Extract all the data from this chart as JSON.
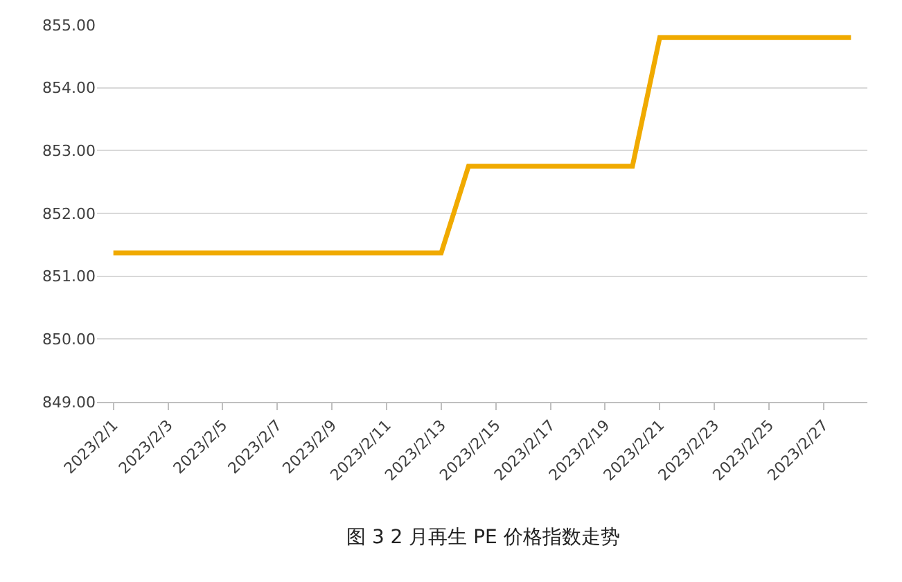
{
  "chart_data": {
    "type": "line",
    "title": "图 3 2 月再生 PE 价格指数走势",
    "categories": [
      "2023/2/1",
      null,
      "2023/2/3",
      null,
      "2023/2/5",
      null,
      "2023/2/7",
      null,
      "2023/2/9",
      null,
      "2023/2/11",
      null,
      "2023/2/13",
      null,
      "2023/2/15",
      null,
      "2023/2/17",
      null,
      "2023/2/19",
      null,
      "2023/2/21",
      null,
      "2023/2/23",
      null,
      "2023/2/25",
      null,
      "2023/2/27",
      null
    ],
    "series": [
      {
        "color": "#f0aa00",
        "values": [
          851.37,
          851.37,
          851.37,
          851.37,
          851.37,
          851.37,
          851.37,
          851.37,
          851.37,
          851.37,
          851.37,
          851.37,
          851.37,
          852.75,
          852.75,
          852.75,
          852.75,
          852.75,
          852.75,
          852.75,
          854.8,
          854.8,
          854.8,
          854.8,
          854.8,
          854.8,
          854.8,
          854.8
        ]
      }
    ],
    "ylim": [
      849,
      855
    ],
    "yticks": [
      {
        "value": 849,
        "label": "849.00"
      },
      {
        "value": 850,
        "label": "850.00"
      },
      {
        "value": 851,
        "label": "851.00"
      },
      {
        "value": 852,
        "label": "852.00"
      },
      {
        "value": 853,
        "label": "853.00"
      },
      {
        "value": 854,
        "label": "854.00"
      },
      {
        "value": 855,
        "label": "855.00"
      }
    ],
    "grid": "y",
    "marker": "none",
    "line_style": "solid"
  }
}
